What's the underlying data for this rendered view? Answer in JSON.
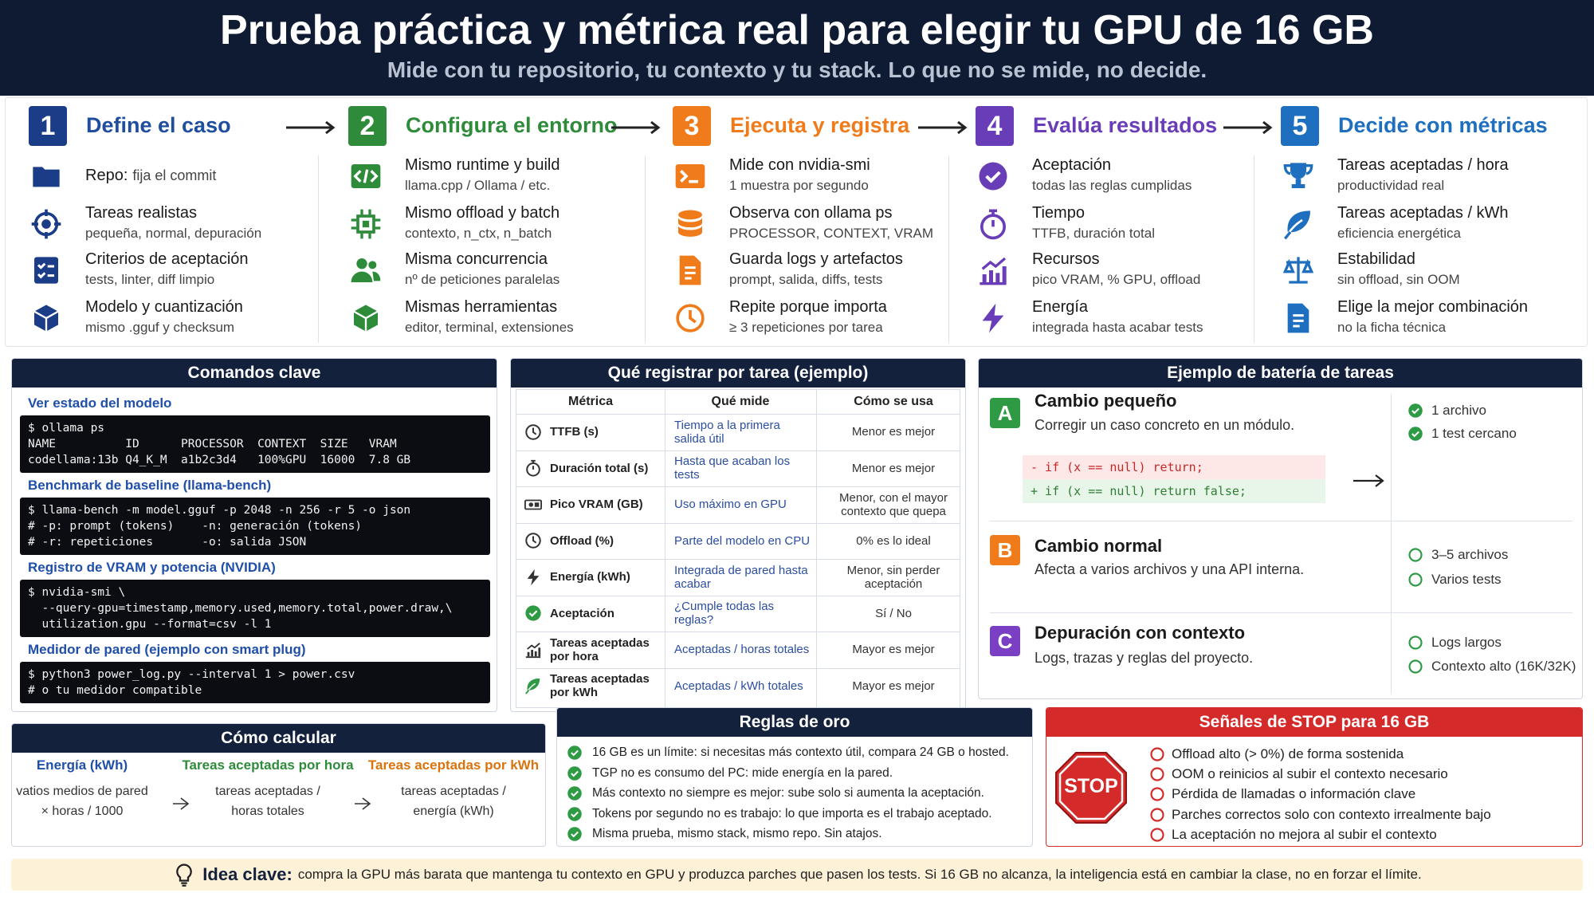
{
  "header": {
    "title": "Prueba práctica y métrica real para elegir tu GPU de 16 GB",
    "subtitle": "Mide con tu repositorio, tu contexto y tu stack. Lo que no se mide, no decide."
  },
  "steps": [
    {
      "number": "1",
      "title": "Define el caso",
      "items": [
        {
          "title": "Repo:",
          "desc": "fija el commit"
        },
        {
          "title": "Tareas realistas",
          "desc": "pequeña, normal, depuración"
        },
        {
          "title": "Criterios de aceptación",
          "desc": "tests, linter, diff limpio"
        },
        {
          "title": "Modelo y cuantización",
          "desc": "mismo .gguf y checksum"
        }
      ]
    },
    {
      "number": "2",
      "title": "Configura el entorno",
      "items": [
        {
          "title": "Mismo runtime y build",
          "desc": "llama.cpp / Ollama / etc."
        },
        {
          "title": "Mismo offload y batch",
          "desc": "contexto, n_ctx, n_batch"
        },
        {
          "title": "Misma concurrencia",
          "desc": "nº de peticiones paralelas"
        },
        {
          "title": "Mismas herramientas",
          "desc": "editor, terminal, extensiones"
        }
      ]
    },
    {
      "number": "3",
      "title": "Ejecuta y registra",
      "items": [
        {
          "title": "Mide con nvidia-smi",
          "desc": "1 muestra por segundo"
        },
        {
          "title": "Observa con ollama ps",
          "desc": "PROCESSOR, CONTEXT, VRAM"
        },
        {
          "title": "Guarda logs y artefactos",
          "desc": "prompt, salida, diffs, tests"
        },
        {
          "title": "Repite porque importa",
          "desc": "≥ 3 repeticiones por tarea"
        }
      ]
    },
    {
      "number": "4",
      "title": "Evalúa resultados",
      "items": [
        {
          "title": "Aceptación",
          "desc": "todas las reglas cumplidas"
        },
        {
          "title": "Tiempo",
          "desc": "TTFB, duración total"
        },
        {
          "title": "Recursos",
          "desc": "pico VRAM, % GPU, offload"
        },
        {
          "title": "Energía",
          "desc": "integrada hasta acabar tests"
        }
      ]
    },
    {
      "number": "5",
      "title": "Decide con métricas",
      "items": [
        {
          "title": "Tareas aceptadas / hora",
          "desc": "productividad real"
        },
        {
          "title": "Tareas aceptadas / kWh",
          "desc": "eficiencia energética"
        },
        {
          "title": "Estabilidad",
          "desc": "sin offload, sin OOM"
        },
        {
          "title": "Elige la mejor combinación",
          "desc": "no la ficha técnica"
        }
      ]
    }
  ],
  "commands": {
    "title": "Comandos clave",
    "blocks": [
      {
        "label": "Ver estado del modelo",
        "code": [
          "$ ollama ps",
          "NAME          ID      PROCESSOR  CONTEXT  SIZE   VRAM",
          "codellama:13b Q4_K_M  a1b2c3d4   100%GPU  16000  7.8 GB"
        ]
      },
      {
        "label": "Benchmark de baseline (llama-bench)",
        "code": [
          "$ llama-bench -m model.gguf -p 2048 -n 256 -r 5 -o json",
          "# -p: prompt (tokens)    -n: generación (tokens)",
          "# -r: repeticiones       -o: salida JSON"
        ]
      },
      {
        "label": "Registro de VRAM y potencia (NVIDIA)",
        "code": [
          "$ nvidia-smi \\",
          "  --query-gpu=timestamp,memory.used,memory.total,power.draw,\\",
          "  utilization.gpu --format=csv -l 1"
        ]
      },
      {
        "label": "Medidor de pared (ejemplo con smart plug)",
        "code": [
          "$ python3 power_log.py --interval 1 > power.csv",
          "# o tu medidor compatible"
        ]
      }
    ]
  },
  "table": {
    "title": "Qué registrar por tarea (ejemplo)",
    "headers": [
      "Métrica",
      "Qué mide",
      "Cómo se usa"
    ],
    "rows": [
      [
        "TTFB (s)",
        "Tiempo a la primera salida útil",
        "Menor es mejor"
      ],
      [
        "Duración total (s)",
        "Hasta que acaban los tests",
        "Menor es mejor"
      ],
      [
        "Pico VRAM (GB)",
        "Uso máximo en GPU",
        "Menor, con el mayor contexto que quepa"
      ],
      [
        "Offload (%)",
        "Parte del modelo en CPU",
        "0% es lo ideal"
      ],
      [
        "Energía (kWh)",
        "Integrada de pared hasta acabar",
        "Menor, sin perder aceptación"
      ],
      [
        "Aceptación",
        "¿Cumple todas las reglas?",
        "Sí / No"
      ],
      [
        "Tareas aceptadas por hora",
        "Aceptadas / horas totales",
        "Mayor es mejor"
      ],
      [
        "Tareas aceptadas por kWh",
        "Aceptadas / kWh totales",
        "Mayor es mejor"
      ]
    ]
  },
  "tasks": {
    "title": "Ejemplo de batería de tareas",
    "items": [
      {
        "letter": "A",
        "title": "Cambio pequeño",
        "desc": "Corregir un caso concreto en un módulo.",
        "diff": [
          "- if (x == null) return;",
          "+ if (x == null) return false;"
        ],
        "checks": [
          "1 archivo",
          "1 test cercano"
        ]
      },
      {
        "letter": "B",
        "title": "Cambio normal",
        "desc": "Afecta a varios archivos y una API interna.",
        "checks": [
          "3–5 archivos",
          "Varios tests"
        ]
      },
      {
        "letter": "C",
        "title": "Depuración con contexto",
        "desc": "Logs, trazas y reglas del proyecto.",
        "checks": [
          "Logs largos",
          "Contexto alto (16K/32K)"
        ]
      }
    ]
  },
  "calc": {
    "title": "Cómo calcular",
    "columns": [
      {
        "title": "Energía (kWh)",
        "formula": [
          "vatios medios de pared",
          "× horas / 1000"
        ]
      },
      {
        "title": "Tareas aceptadas por hora",
        "formula": [
          "tareas aceptadas /",
          "horas totales"
        ]
      },
      {
        "title": "Tareas aceptadas por kWh",
        "formula": [
          "tareas aceptadas /",
          "energía (kWh)"
        ]
      }
    ]
  },
  "rules": {
    "title": "Reglas de oro",
    "items": [
      "16 GB es un límite: si necesitas más contexto útil, compara 24 GB o hosted.",
      "TGP no es consumo del PC: mide energía en la pared.",
      "Más contexto no siempre es mejor: sube solo si aumenta la aceptación.",
      "Tokens por segundo no es trabajo: lo que importa es el trabajo aceptado.",
      "Misma prueba, mismo stack, mismo repo. Sin atajos."
    ]
  },
  "stop": {
    "title": "Señales de STOP para 16 GB",
    "sign": "STOP",
    "items": [
      "Offload alto (> 0%) de forma sostenida",
      "OOM o reinicios al subir el contexto necesario",
      "Pérdida de llamadas o información clave",
      "Parches correctos solo con contexto irrealmente bajo",
      "La aceptación no mejora al subir el contexto"
    ]
  },
  "footer": {
    "label": "Idea clave:",
    "text": "compra la GPU más barata que mantenga tu contexto en GPU y produzca parches que pasen los tests. Si 16 GB no alcanza, la inteligencia está en cambiar la clase, no en forzar el límite."
  }
}
